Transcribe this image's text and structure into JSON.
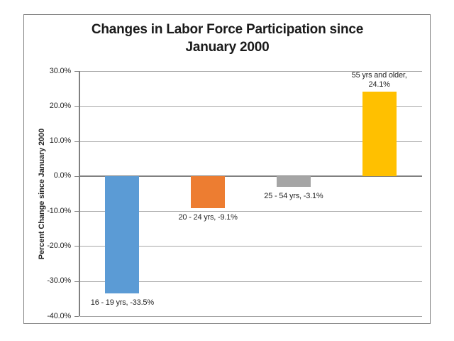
{
  "chart_data": {
    "type": "bar",
    "title_lines": [
      "Changes in Labor Force Participation since",
      "January 2000"
    ],
    "title": "Changes in Labor Force Participation since January 2000",
    "xlabel": "",
    "ylabel": "Percent Change since January 2000",
    "ylim": [
      -40,
      30
    ],
    "ytick_step": 10,
    "ytick_labels": [
      "30.0%",
      "20.0%",
      "10.0%",
      "0.0%",
      "-10.0%",
      "-20.0%",
      "-30.0%",
      "-40.0%"
    ],
    "grid": true,
    "legend": "none",
    "categories": [
      "16 - 19 yrs",
      "20 - 24 yrs",
      "25 - 54 yrs",
      "55 yrs and older"
    ],
    "values": [
      -33.5,
      -9.1,
      -3.1,
      24.1
    ],
    "bars": [
      {
        "category": "16 - 19 yrs",
        "value": -33.5,
        "color": "#5B9BD5",
        "label_lines": [
          "16 - 19 yrs, -33.5%"
        ],
        "label_position": "below"
      },
      {
        "category": "20 - 24 yrs",
        "value": -9.1,
        "color": "#ED7D31",
        "label_lines": [
          "20 - 24 yrs, -9.1%"
        ],
        "label_position": "below"
      },
      {
        "category": "25 - 54 yrs",
        "value": -3.1,
        "color": "#A5A5A5",
        "label_lines": [
          "25 - 54 yrs, -3.1%"
        ],
        "label_position": "below"
      },
      {
        "category": "55 yrs and older",
        "value": 24.1,
        "color": "#FFC000",
        "label_lines": [
          "55 yrs and older,",
          "24.1%"
        ],
        "label_position": "above"
      }
    ],
    "colors": {
      "background": "#FFFFFF",
      "gridline": "#A6A6A6",
      "axis": "#808080",
      "frame_border": "#7F7F7F",
      "text": "#262626",
      "title_text": "#1A1A1A"
    }
  }
}
